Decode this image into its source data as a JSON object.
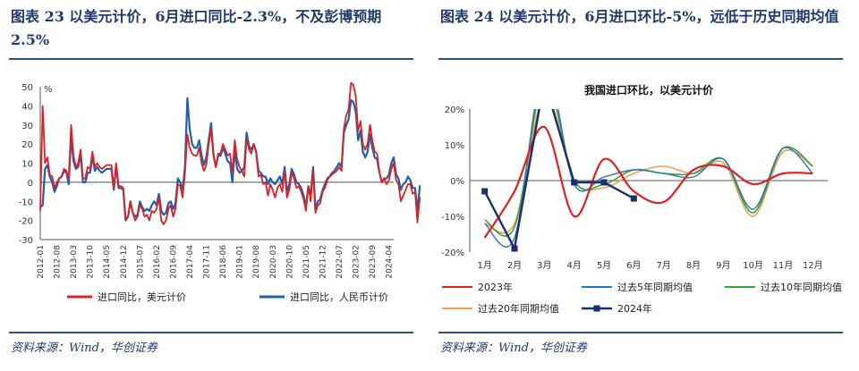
{
  "left": {
    "title": "图表 23 以美元计价，6月进口同比-2.3%，不及彭博预期 2.5%",
    "source": "资料来源：Wind，华创证券"
  },
  "right": {
    "title": "图表 24 以美元计价，6月进口环比-5%，远低于历史同期均值",
    "source": "资料来源：Wind，华创证券"
  },
  "chart_data": [
    {
      "type": "line",
      "title": "",
      "ylabel": "%",
      "ylim": [
        -30,
        50
      ],
      "yticks": [
        -30,
        -20,
        -10,
        0,
        10,
        20,
        30,
        40,
        50
      ],
      "x_start": "2012-01",
      "x_end": "2024-06",
      "x_tick_labels": [
        "2012-01",
        "2012-08",
        "2013-03",
        "2013-10",
        "2014-05",
        "2014-12",
        "2015-07",
        "2016-02",
        "2016-09",
        "2017-04",
        "2017-11",
        "2018-06",
        "2019-01",
        "2019-08",
        "2020-03",
        "2020-10",
        "2021-05",
        "2021-12",
        "2022-07",
        "2023-02",
        "2023-09",
        "2024-04"
      ],
      "legend_position": "bottom",
      "series": [
        {
          "name": "进口同比，美元计价",
          "color": "#e02020",
          "values": [
            -15,
            40,
            10,
            13,
            4,
            3,
            -3,
            0,
            2,
            3,
            7,
            6,
            2,
            30,
            14,
            8,
            10,
            17,
            2,
            2,
            8,
            7,
            16,
            8,
            10,
            8,
            7,
            8,
            9,
            9,
            9,
            -3,
            10,
            -2,
            -2,
            -3,
            -20,
            -18,
            -10,
            -16,
            -20,
            -18,
            -12,
            -14,
            -18,
            -17,
            -20,
            -15,
            -16,
            -14,
            -8,
            -20,
            -22,
            -20,
            -14,
            -12,
            -18,
            -14,
            -1,
            -2,
            -8,
            5,
            25,
            18,
            15,
            14,
            14,
            18,
            10,
            6,
            9,
            20,
            28,
            14,
            8,
            15,
            15,
            20,
            17,
            14,
            15,
            5,
            22,
            12,
            8,
            6,
            3,
            23,
            17,
            15,
            20,
            16,
            3,
            4,
            -1,
            0,
            -7,
            -1,
            -4,
            -8,
            -3,
            -1,
            -5,
            6,
            -8,
            -4,
            5,
            2,
            -3,
            -2,
            -5,
            -9,
            -15,
            -2,
            -10,
            6,
            -16,
            -12,
            -11,
            -5,
            -3,
            1,
            3,
            4,
            5,
            6,
            8,
            6,
            28,
            35,
            38,
            52,
            51,
            45,
            27,
            32,
            20,
            17,
            20,
            30,
            22,
            16,
            15,
            5,
            0,
            2,
            -1,
            1,
            7,
            10,
            1,
            -1,
            -10,
            -7,
            -4,
            -1,
            -1,
            -6,
            -5,
            -21,
            -8,
            -9,
            -4,
            -6,
            -9,
            -7,
            -5,
            -1,
            -6,
            -4,
            -8,
            3,
            6,
            -10,
            8,
            1,
            2,
            -2
          ]
        },
        {
          "name": "进口同比，人民币计价",
          "color": "#1f5fb0",
          "values": [
            -13,
            -12,
            7,
            9,
            3,
            0,
            -5,
            -2,
            2,
            3,
            6,
            5,
            -1,
            24,
            11,
            7,
            8,
            15,
            0,
            0,
            5,
            5,
            14,
            6,
            8,
            6,
            5,
            6,
            7,
            7,
            7,
            -4,
            9,
            -3,
            -3,
            -4,
            -20,
            -18,
            -10,
            -16,
            -18,
            -17,
            -10,
            -13,
            -15,
            -14,
            -15,
            -12,
            -10,
            -12,
            -6,
            -15,
            -17,
            -16,
            -11,
            -10,
            -14,
            -11,
            2,
            0,
            -4,
            8,
            44,
            28,
            20,
            18,
            18,
            22,
            14,
            9,
            13,
            22,
            31,
            15,
            8,
            14,
            14,
            18,
            15,
            11,
            10,
            0,
            17,
            7,
            5,
            6,
            8,
            26,
            19,
            17,
            20,
            16,
            6,
            5,
            3,
            3,
            -1,
            2,
            0,
            -1,
            1,
            3,
            -1,
            8,
            -5,
            -1,
            7,
            4,
            0,
            -1,
            -3,
            -7,
            -13,
            -2,
            -7,
            8,
            -14,
            -10,
            -9,
            -4,
            -1,
            2,
            3,
            5,
            6,
            8,
            10,
            8,
            26,
            30,
            33,
            43,
            42,
            37,
            22,
            27,
            16,
            13,
            16,
            25,
            18,
            13,
            12,
            5,
            0,
            2,
            2,
            4,
            10,
            13,
            4,
            2,
            -4,
            -1,
            0,
            3,
            1,
            -3,
            -3,
            -15,
            -2,
            -2,
            1,
            -1,
            -3,
            -1,
            -1,
            3,
            -2,
            0,
            -3,
            7,
            10,
            -5,
            12,
            5,
            5,
            2
          ]
        }
      ]
    },
    {
      "type": "line",
      "title": "我国进口环比，以美元计价",
      "ylim": [
        -20,
        20
      ],
      "ytick_labels": [
        "-20%",
        "-10%",
        "0%",
        "10%",
        "20%"
      ],
      "categories": [
        "1月",
        "2月",
        "3月",
        "4月",
        "5月",
        "6月",
        "7月",
        "8月",
        "9月",
        "10月",
        "11月",
        "12月"
      ],
      "legend_position": "bottom",
      "series": [
        {
          "name": "2023年",
          "color": "#e02020",
          "x": [
            1,
            2,
            3,
            4,
            5,
            6,
            7,
            8,
            9,
            10,
            11,
            12
          ],
          "values": [
            -16,
            -3,
            15,
            -10,
            6,
            -3,
            -6,
            3,
            4,
            -1,
            2,
            2
          ]
        },
        {
          "name": "过去5年同期均值",
          "color": "#2e75b6",
          "x": [
            1,
            2,
            3,
            4,
            5,
            6,
            7,
            8,
            9,
            10,
            11,
            12
          ],
          "values": [
            -12,
            -16,
            32,
            -1,
            1,
            3,
            2,
            1,
            6,
            -8,
            9,
            2
          ]
        },
        {
          "name": "过去10年同期均值",
          "color": "#3ca03c",
          "x": [
            1,
            2,
            3,
            4,
            5,
            6,
            7,
            8,
            9,
            10,
            11,
            12
          ],
          "values": [
            -11,
            -13,
            28,
            0,
            -1,
            3,
            2,
            2,
            6,
            -9,
            9,
            4
          ]
        },
        {
          "name": "过去20年同期均值",
          "color": "#e8a05a",
          "x": [
            1,
            2,
            3,
            4,
            5,
            6,
            7,
            8,
            9,
            10,
            11,
            12
          ],
          "values": [
            -12,
            -12,
            24,
            0,
            -2,
            2,
            4,
            2,
            5,
            -10,
            8,
            4
          ]
        },
        {
          "name": "2024年",
          "color": "#1a2e6e",
          "x": [
            1,
            2,
            3,
            4,
            5,
            6
          ],
          "values": [
            -3,
            -19,
            28,
            -0.5,
            -0.5,
            -5
          ]
        }
      ]
    }
  ]
}
